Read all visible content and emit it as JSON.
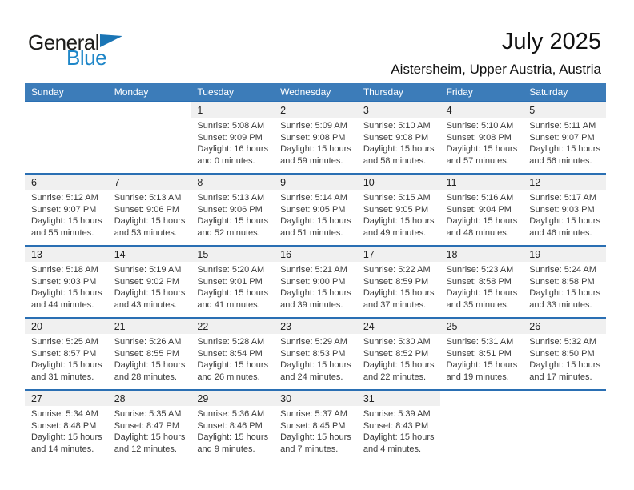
{
  "logo": {
    "general": "General",
    "blue": "Blue"
  },
  "header": {
    "title": "July 2025",
    "subtitle": "Aistersheim, Upper Austria, Austria"
  },
  "weekdays": [
    "Sunday",
    "Monday",
    "Tuesday",
    "Wednesday",
    "Thursday",
    "Friday",
    "Saturday"
  ],
  "colors": {
    "header_blue": "#3c7cb9",
    "row_border_blue": "#2a6fb3",
    "logo_blue": "#1e86c8",
    "band_gray": "#f0f0f0"
  },
  "weeks": [
    [
      null,
      null,
      {
        "day": "1",
        "sunrise": "Sunrise: 5:08 AM",
        "sunset": "Sunset: 9:09 PM",
        "daylight1": "Daylight: 16 hours",
        "daylight2": "and 0 minutes."
      },
      {
        "day": "2",
        "sunrise": "Sunrise: 5:09 AM",
        "sunset": "Sunset: 9:08 PM",
        "daylight1": "Daylight: 15 hours",
        "daylight2": "and 59 minutes."
      },
      {
        "day": "3",
        "sunrise": "Sunrise: 5:10 AM",
        "sunset": "Sunset: 9:08 PM",
        "daylight1": "Daylight: 15 hours",
        "daylight2": "and 58 minutes."
      },
      {
        "day": "4",
        "sunrise": "Sunrise: 5:10 AM",
        "sunset": "Sunset: 9:08 PM",
        "daylight1": "Daylight: 15 hours",
        "daylight2": "and 57 minutes."
      },
      {
        "day": "5",
        "sunrise": "Sunrise: 5:11 AM",
        "sunset": "Sunset: 9:07 PM",
        "daylight1": "Daylight: 15 hours",
        "daylight2": "and 56 minutes."
      }
    ],
    [
      {
        "day": "6",
        "sunrise": "Sunrise: 5:12 AM",
        "sunset": "Sunset: 9:07 PM",
        "daylight1": "Daylight: 15 hours",
        "daylight2": "and 55 minutes."
      },
      {
        "day": "7",
        "sunrise": "Sunrise: 5:13 AM",
        "sunset": "Sunset: 9:06 PM",
        "daylight1": "Daylight: 15 hours",
        "daylight2": "and 53 minutes."
      },
      {
        "day": "8",
        "sunrise": "Sunrise: 5:13 AM",
        "sunset": "Sunset: 9:06 PM",
        "daylight1": "Daylight: 15 hours",
        "daylight2": "and 52 minutes."
      },
      {
        "day": "9",
        "sunrise": "Sunrise: 5:14 AM",
        "sunset": "Sunset: 9:05 PM",
        "daylight1": "Daylight: 15 hours",
        "daylight2": "and 51 minutes."
      },
      {
        "day": "10",
        "sunrise": "Sunrise: 5:15 AM",
        "sunset": "Sunset: 9:05 PM",
        "daylight1": "Daylight: 15 hours",
        "daylight2": "and 49 minutes."
      },
      {
        "day": "11",
        "sunrise": "Sunrise: 5:16 AM",
        "sunset": "Sunset: 9:04 PM",
        "daylight1": "Daylight: 15 hours",
        "daylight2": "and 48 minutes."
      },
      {
        "day": "12",
        "sunrise": "Sunrise: 5:17 AM",
        "sunset": "Sunset: 9:03 PM",
        "daylight1": "Daylight: 15 hours",
        "daylight2": "and 46 minutes."
      }
    ],
    [
      {
        "day": "13",
        "sunrise": "Sunrise: 5:18 AM",
        "sunset": "Sunset: 9:03 PM",
        "daylight1": "Daylight: 15 hours",
        "daylight2": "and 44 minutes."
      },
      {
        "day": "14",
        "sunrise": "Sunrise: 5:19 AM",
        "sunset": "Sunset: 9:02 PM",
        "daylight1": "Daylight: 15 hours",
        "daylight2": "and 43 minutes."
      },
      {
        "day": "15",
        "sunrise": "Sunrise: 5:20 AM",
        "sunset": "Sunset: 9:01 PM",
        "daylight1": "Daylight: 15 hours",
        "daylight2": "and 41 minutes."
      },
      {
        "day": "16",
        "sunrise": "Sunrise: 5:21 AM",
        "sunset": "Sunset: 9:00 PM",
        "daylight1": "Daylight: 15 hours",
        "daylight2": "and 39 minutes."
      },
      {
        "day": "17",
        "sunrise": "Sunrise: 5:22 AM",
        "sunset": "Sunset: 8:59 PM",
        "daylight1": "Daylight: 15 hours",
        "daylight2": "and 37 minutes."
      },
      {
        "day": "18",
        "sunrise": "Sunrise: 5:23 AM",
        "sunset": "Sunset: 8:58 PM",
        "daylight1": "Daylight: 15 hours",
        "daylight2": "and 35 minutes."
      },
      {
        "day": "19",
        "sunrise": "Sunrise: 5:24 AM",
        "sunset": "Sunset: 8:58 PM",
        "daylight1": "Daylight: 15 hours",
        "daylight2": "and 33 minutes."
      }
    ],
    [
      {
        "day": "20",
        "sunrise": "Sunrise: 5:25 AM",
        "sunset": "Sunset: 8:57 PM",
        "daylight1": "Daylight: 15 hours",
        "daylight2": "and 31 minutes."
      },
      {
        "day": "21",
        "sunrise": "Sunrise: 5:26 AM",
        "sunset": "Sunset: 8:55 PM",
        "daylight1": "Daylight: 15 hours",
        "daylight2": "and 28 minutes."
      },
      {
        "day": "22",
        "sunrise": "Sunrise: 5:28 AM",
        "sunset": "Sunset: 8:54 PM",
        "daylight1": "Daylight: 15 hours",
        "daylight2": "and 26 minutes."
      },
      {
        "day": "23",
        "sunrise": "Sunrise: 5:29 AM",
        "sunset": "Sunset: 8:53 PM",
        "daylight1": "Daylight: 15 hours",
        "daylight2": "and 24 minutes."
      },
      {
        "day": "24",
        "sunrise": "Sunrise: 5:30 AM",
        "sunset": "Sunset: 8:52 PM",
        "daylight1": "Daylight: 15 hours",
        "daylight2": "and 22 minutes."
      },
      {
        "day": "25",
        "sunrise": "Sunrise: 5:31 AM",
        "sunset": "Sunset: 8:51 PM",
        "daylight1": "Daylight: 15 hours",
        "daylight2": "and 19 minutes."
      },
      {
        "day": "26",
        "sunrise": "Sunrise: 5:32 AM",
        "sunset": "Sunset: 8:50 PM",
        "daylight1": "Daylight: 15 hours",
        "daylight2": "and 17 minutes."
      }
    ],
    [
      {
        "day": "27",
        "sunrise": "Sunrise: 5:34 AM",
        "sunset": "Sunset: 8:48 PM",
        "daylight1": "Daylight: 15 hours",
        "daylight2": "and 14 minutes."
      },
      {
        "day": "28",
        "sunrise": "Sunrise: 5:35 AM",
        "sunset": "Sunset: 8:47 PM",
        "daylight1": "Daylight: 15 hours",
        "daylight2": "and 12 minutes."
      },
      {
        "day": "29",
        "sunrise": "Sunrise: 5:36 AM",
        "sunset": "Sunset: 8:46 PM",
        "daylight1": "Daylight: 15 hours",
        "daylight2": "and 9 minutes."
      },
      {
        "day": "30",
        "sunrise": "Sunrise: 5:37 AM",
        "sunset": "Sunset: 8:45 PM",
        "daylight1": "Daylight: 15 hours",
        "daylight2": "and 7 minutes."
      },
      {
        "day": "31",
        "sunrise": "Sunrise: 5:39 AM",
        "sunset": "Sunset: 8:43 PM",
        "daylight1": "Daylight: 15 hours",
        "daylight2": "and 4 minutes."
      },
      null,
      null
    ]
  ]
}
